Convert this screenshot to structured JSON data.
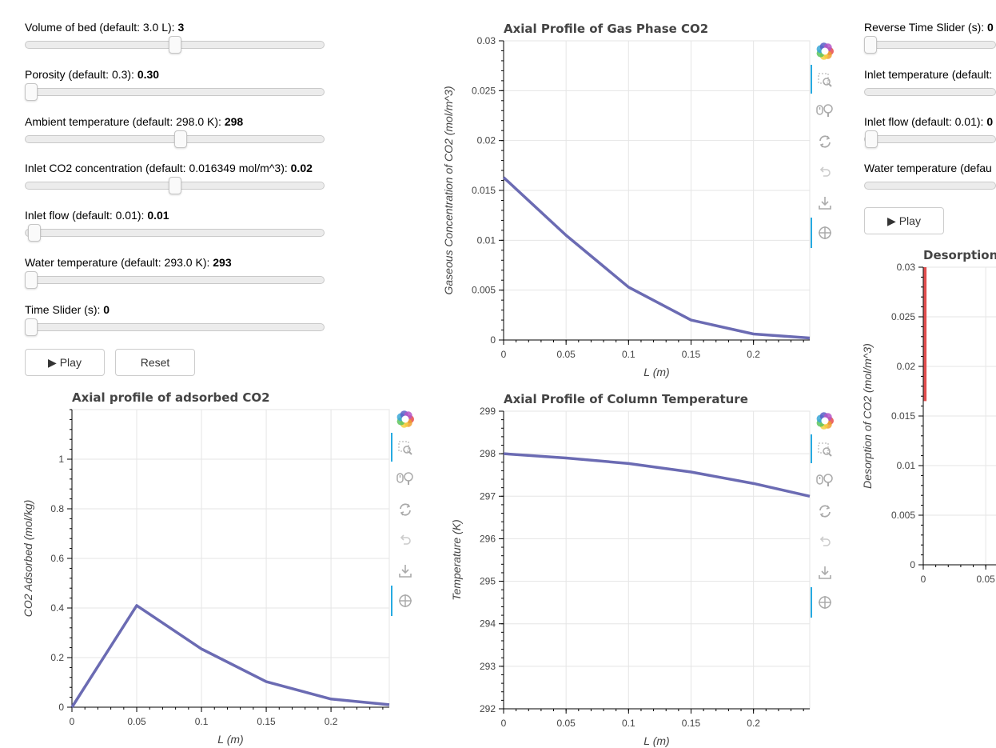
{
  "left_controls": {
    "sliders": [
      {
        "label": "Volume of bed (default: 3.0 L): ",
        "value": "3",
        "fraction": 0.5
      },
      {
        "label": "Porosity (default: 0.3): ",
        "value": "0.30",
        "fraction": 0.0
      },
      {
        "label": "Ambient temperature (default: 298.0 K): ",
        "value": "298",
        "fraction": 0.52
      },
      {
        "label": "Inlet CO2 concentration (default: 0.016349 mol/m^3): ",
        "value": "0.02",
        "fraction": 0.5
      },
      {
        "label": "Inlet flow (default: 0.01): ",
        "value": "0.01",
        "fraction": 0.01
      },
      {
        "label": "Water temperature (default: 293.0 K): ",
        "value": "293",
        "fraction": 0.0
      },
      {
        "label": "Time Slider (s): ",
        "value": "0",
        "fraction": 0.0
      }
    ],
    "play_label": "▶ Play",
    "reset_label": "Reset"
  },
  "right_controls": {
    "sliders": [
      {
        "label": "Reverse Time Slider (s): ",
        "value": "0",
        "fraction": 0.0
      },
      {
        "label": "Inlet temperature (default:",
        "value": "",
        "fraction": 0.0
      },
      {
        "label": "Inlet flow (default: 0.01): ",
        "value": "0",
        "fraction": 0.01
      },
      {
        "label": "Water temperature (defau",
        "value": "",
        "fraction": 0.0
      }
    ],
    "play_label": "▶ Play"
  },
  "toolbar_icons": [
    "bokeh-logo-icon",
    "box-zoom-icon",
    "wheel-zoom-icon",
    "reset-icon",
    "undo-icon",
    "save-icon",
    "crosshair-icon"
  ],
  "colors": {
    "line": "#6b6bb3",
    "desorption_line": "#e04c4c",
    "tool_active": "#26aae1"
  },
  "chart_data": [
    {
      "id": "gas",
      "type": "line",
      "title": "Axial Profile of Gas Phase CO2",
      "xlabel": "L (m)",
      "ylabel": "Gaseous Concentration of CO2 (mol/m^3)",
      "xlim": [
        0,
        0.245
      ],
      "ylim": [
        0,
        0.03
      ],
      "xticks": [
        "0",
        "0.05",
        "0.1",
        "0.15",
        "0.2"
      ],
      "xtick_values": [
        0,
        0.05,
        0.1,
        0.15,
        0.2
      ],
      "yticks": [
        "0",
        "0.005",
        "0.01",
        "0.015",
        "0.02",
        "0.025",
        "0.03"
      ],
      "ytick_values": [
        0,
        0.005,
        0.01,
        0.015,
        0.02,
        0.025,
        0.03
      ],
      "x": [
        0,
        0.05,
        0.1,
        0.15,
        0.2,
        0.245
      ],
      "y": [
        0.0163,
        0.0105,
        0.0053,
        0.002,
        0.0006,
        0.0002
      ]
    },
    {
      "id": "ads",
      "type": "line",
      "title": "Axial profile of adsorbed CO2",
      "xlabel": "L (m)",
      "ylabel": "CO2 Adsorbed (mol/kg)",
      "xlim": [
        0,
        0.245
      ],
      "ylim": [
        0,
        1.2
      ],
      "xticks": [
        "0",
        "0.05",
        "0.1",
        "0.15",
        "0.2"
      ],
      "xtick_values": [
        0,
        0.05,
        0.1,
        0.15,
        0.2
      ],
      "yticks": [
        "0",
        "0.2",
        "0.4",
        "0.6",
        "0.8",
        "1"
      ],
      "ytick_values": [
        0,
        0.2,
        0.4,
        0.6,
        0.8,
        1
      ],
      "x": [
        0,
        0.05,
        0.1,
        0.15,
        0.2,
        0.245
      ],
      "y": [
        0,
        0.41,
        0.235,
        0.103,
        0.033,
        0.01
      ]
    },
    {
      "id": "temp",
      "type": "line",
      "title": "Axial Profile of Column Temperature",
      "xlabel": "L (m)",
      "ylabel": "Temperature (K)",
      "xlim": [
        0,
        0.245
      ],
      "ylim": [
        292,
        299
      ],
      "xticks": [
        "0",
        "0.05",
        "0.1",
        "0.15",
        "0.2"
      ],
      "xtick_values": [
        0,
        0.05,
        0.1,
        0.15,
        0.2
      ],
      "yticks": [
        "292",
        "293",
        "294",
        "295",
        "296",
        "297",
        "298",
        "299"
      ],
      "ytick_values": [
        292,
        293,
        294,
        295,
        296,
        297,
        298,
        299
      ],
      "x": [
        0,
        0.05,
        0.1,
        0.15,
        0.2,
        0.245
      ],
      "y": [
        298.0,
        297.9,
        297.77,
        297.57,
        297.3,
        297.0
      ]
    },
    {
      "id": "des",
      "type": "line",
      "title": "Desorption",
      "xlabel": "",
      "ylabel": "Desorption of CO2 (mol/m^3)",
      "xlim": [
        0,
        0.245
      ],
      "ylim": [
        0,
        0.03
      ],
      "xticks": [
        "0",
        "0.05"
      ],
      "xtick_values": [
        0,
        0.05
      ],
      "yticks": [
        "0",
        "0.005",
        "0.01",
        "0.015",
        "0.02",
        "0.025",
        "0.03"
      ],
      "ytick_values": [
        0,
        0.005,
        0.01,
        0.015,
        0.02,
        0.025,
        0.03
      ],
      "x": [
        0.0015,
        0.0015
      ],
      "y": [
        0.0165,
        0.03
      ]
    }
  ]
}
